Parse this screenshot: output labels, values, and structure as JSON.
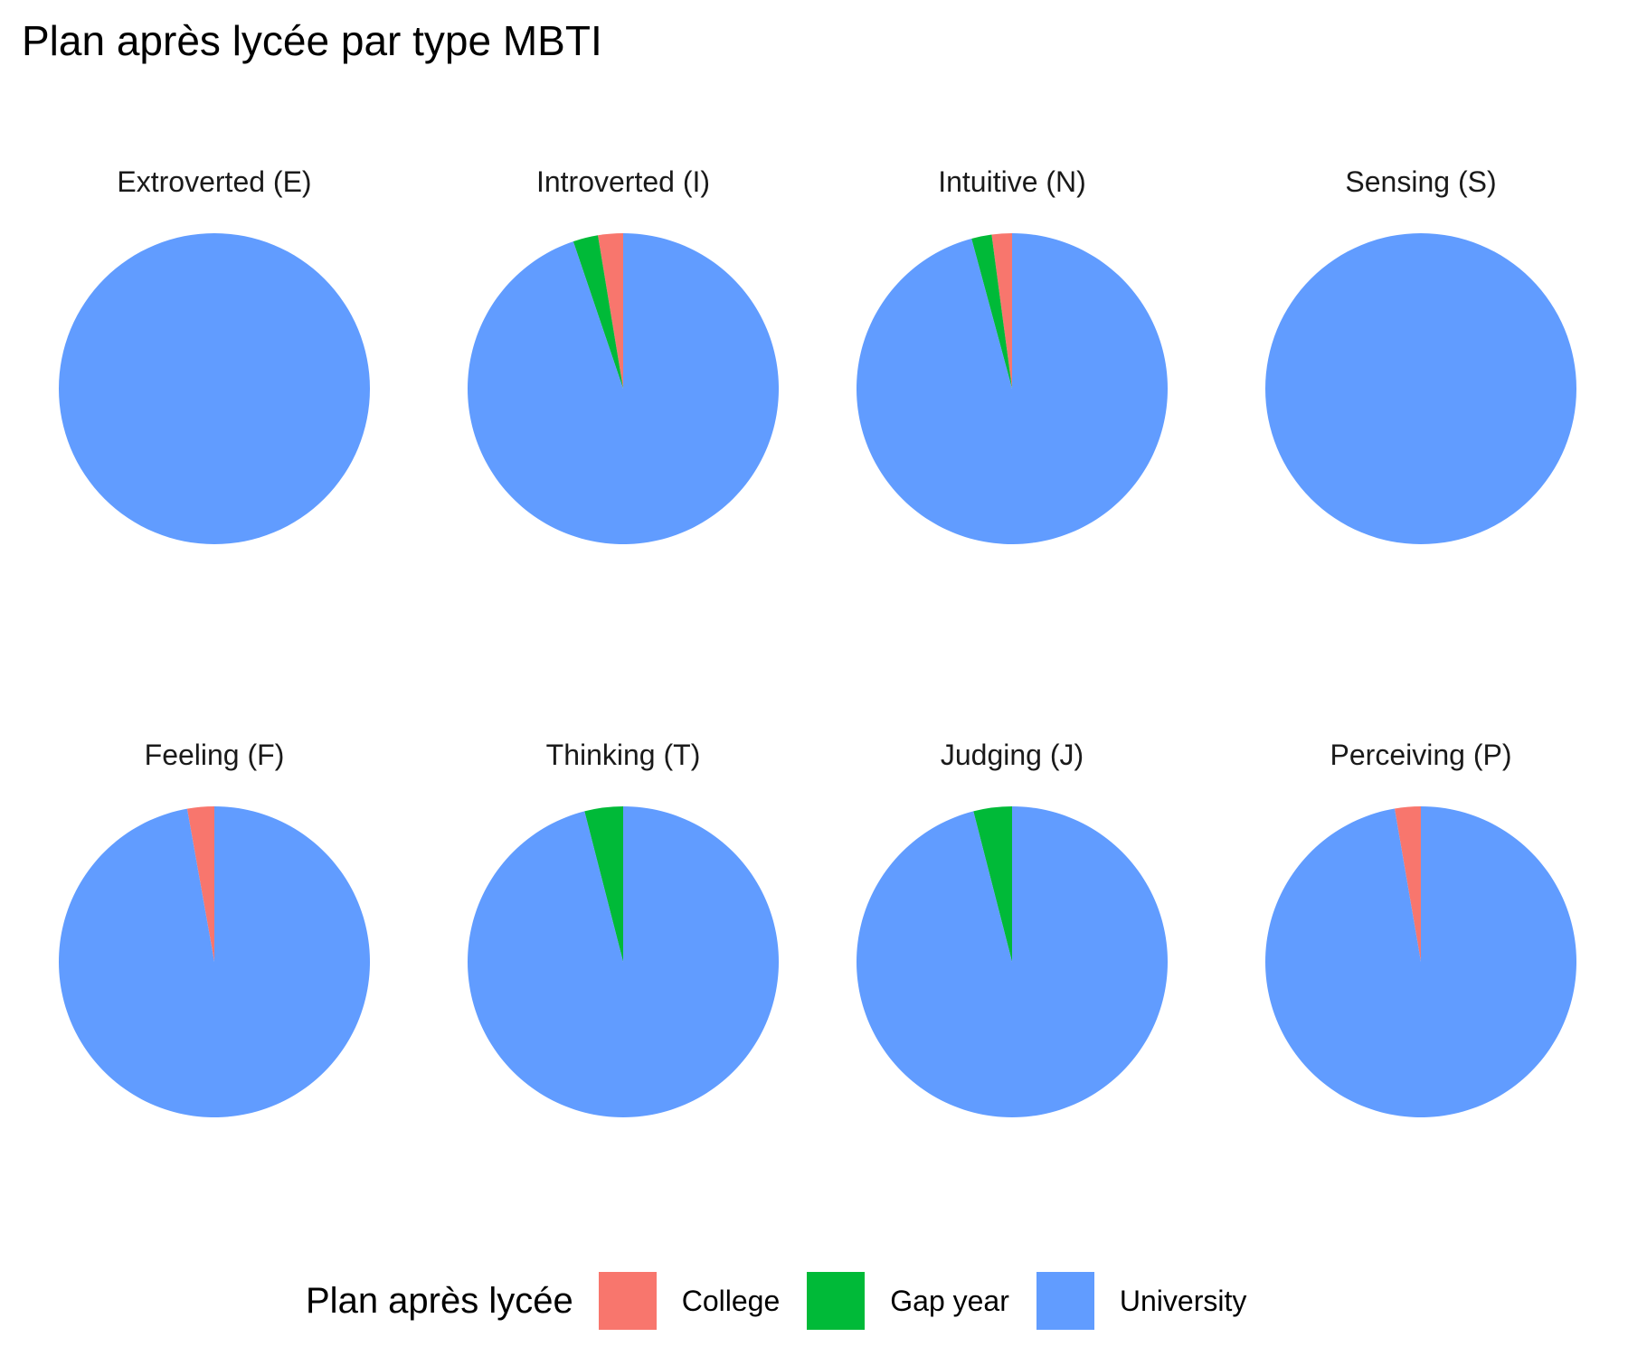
{
  "chart_data": {
    "type": "pie",
    "title": "Plan après lycée par type MBTI",
    "legend": {
      "title": "Plan après lycée",
      "position": "bottom",
      "entries": [
        {
          "label": "College",
          "color": "#F8766D"
        },
        {
          "label": "Gap year",
          "color": "#00BA38"
        },
        {
          "label": "University",
          "color": "#619CFF"
        }
      ]
    },
    "categories": [
      "College",
      "Gap year",
      "University"
    ],
    "facets": [
      {
        "label": "Extroverted (E)",
        "values": [
          0,
          0,
          100
        ]
      },
      {
        "label": "Introverted (I)",
        "values": [
          2.6,
          2.6,
          94.8
        ]
      },
      {
        "label": "Intuitive (N)",
        "values": [
          2.1,
          2.1,
          95.8
        ]
      },
      {
        "label": "Sensing (S)",
        "values": [
          0,
          0,
          100
        ]
      },
      {
        "label": "Feeling (F)",
        "values": [
          2.8,
          0,
          97.2
        ]
      },
      {
        "label": "Thinking (T)",
        "values": [
          0,
          4.0,
          96.0
        ]
      },
      {
        "label": "Judging (J)",
        "values": [
          0,
          4.0,
          96.0
        ]
      },
      {
        "label": "Perceiving (P)",
        "values": [
          2.7,
          0,
          97.3
        ]
      }
    ]
  }
}
